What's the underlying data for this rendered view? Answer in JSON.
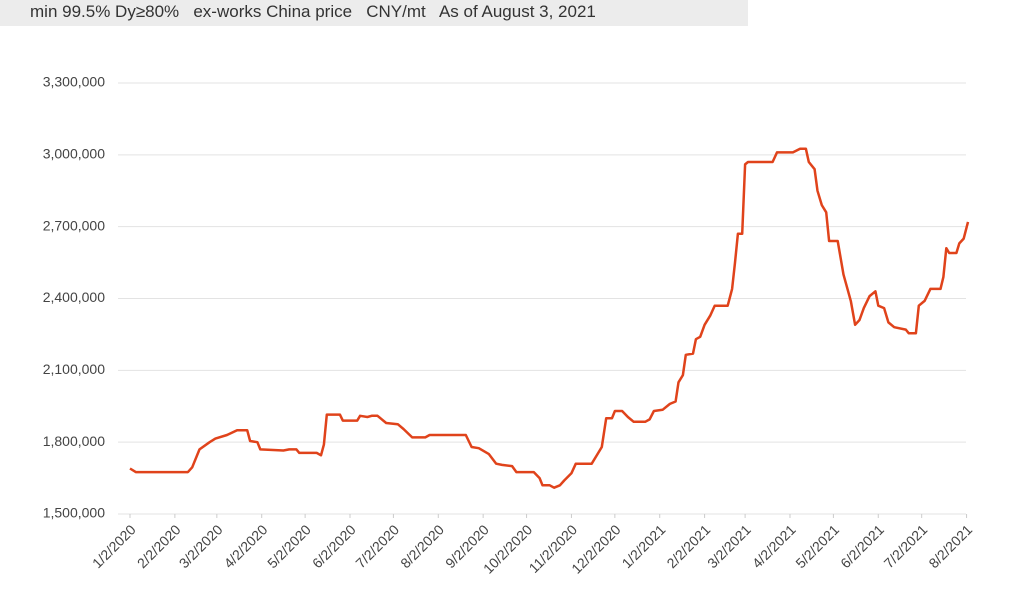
{
  "chart_data": {
    "type": "line",
    "title": "min 99.5% Dy≥80%   ex-works China price   CNY/mt   As of August 3, 2021",
    "color": "#e0431b",
    "x": [
      "1/2/2020",
      "1/6/2020",
      "2/11/2020",
      "2/14/2020",
      "2/19/2020",
      "2/26/2020",
      "3/1/2020",
      "3/9/2020",
      "3/16/2020",
      "3/23/2020",
      "3/25/2020",
      "3/30/2020",
      "4/1/2020",
      "4/17/2020",
      "4/21/2020",
      "4/26/2020",
      "4/28/2020",
      "5/10/2020",
      "5/13/2020",
      "5/15/2020",
      "5/17/2020",
      "5/26/2020",
      "5/28/2020",
      "6/7/2020",
      "6/9/2020",
      "6/14/2020",
      "6/17/2020",
      "6/21/2020",
      "6/27/2020",
      "7/5/2020",
      "7/9/2020",
      "7/15/2020",
      "7/24/2020",
      "7/27/2020",
      "8/21/2020",
      "8/25/2020",
      "8/30/2020",
      "9/6/2020",
      "9/11/2020",
      "9/15/2020",
      "9/22/2020",
      "9/25/2020",
      "10/7/2020",
      "10/11/2020",
      "10/13/2020",
      "10/18/2020",
      "10/21/2020",
      "10/25/2020",
      "10/28/2020",
      "11/2/2020",
      "11/5/2020",
      "11/16/2020",
      "11/20/2020",
      "11/23/2020",
      "11/26/2020",
      "11/30/2020",
      "12/2/2020",
      "12/7/2020",
      "12/11/2020",
      "12/15/2020",
      "12/23/2020",
      "12/26/2020",
      "12/29/2020",
      "1/4/2021",
      "1/9/2021",
      "1/13/2021",
      "1/15/2021",
      "1/18/2021",
      "1/20/2021",
      "1/25/2021",
      "1/27/2021",
      "1/30/2021",
      "2/2/2021",
      "2/6/2021",
      "2/9/2021",
      "2/18/2021",
      "2/21/2021",
      "2/23/2021",
      "2/25/2021",
      "2/28/2021",
      "3/2/2021",
      "3/4/2021",
      "3/21/2021",
      "3/24/2021",
      "4/4/2021",
      "4/9/2021",
      "4/13/2021",
      "4/15/2021",
      "4/19/2021",
      "4/21/2021",
      "4/24/2021",
      "4/27/2021",
      "4/29/2021",
      "5/5/2021",
      "5/9/2021",
      "5/14/2021",
      "5/17/2021",
      "5/20/2021",
      "5/23/2021",
      "5/27/2021",
      "5/31/2021",
      "6/2/2021",
      "6/6/2021",
      "6/9/2021",
      "6/13/2021",
      "6/21/2021",
      "6/23/2021",
      "6/28/2021",
      "6/30/2021",
      "7/4/2021",
      "7/8/2021",
      "7/15/2021",
      "7/17/2021",
      "7/19/2021",
      "7/21/2021",
      "7/26/2021",
      "7/28/2021",
      "7/31/2021",
      "8/3/2021"
    ],
    "values": [
      1690000,
      1675000,
      1675000,
      1695000,
      1770000,
      1800000,
      1815000,
      1830000,
      1850000,
      1850000,
      1805000,
      1800000,
      1770000,
      1765000,
      1770000,
      1770000,
      1755000,
      1755000,
      1745000,
      1790000,
      1915000,
      1915000,
      1890000,
      1890000,
      1910000,
      1905000,
      1910000,
      1910000,
      1880000,
      1875000,
      1855000,
      1820000,
      1820000,
      1830000,
      1830000,
      1780000,
      1775000,
      1750000,
      1710000,
      1705000,
      1700000,
      1675000,
      1675000,
      1650000,
      1620000,
      1620000,
      1610000,
      1620000,
      1640000,
      1670000,
      1710000,
      1710000,
      1750000,
      1780000,
      1900000,
      1900000,
      1930000,
      1930000,
      1905000,
      1885000,
      1885000,
      1895000,
      1930000,
      1935000,
      1960000,
      1970000,
      2050000,
      2080000,
      2165000,
      2170000,
      2230000,
      2240000,
      2290000,
      2330000,
      2370000,
      2370000,
      2440000,
      2550000,
      2670000,
      2670000,
      2960000,
      2970000,
      2970000,
      3010000,
      3010000,
      3025000,
      3025000,
      2970000,
      2940000,
      2850000,
      2790000,
      2760000,
      2640000,
      2640000,
      2500000,
      2390000,
      2290000,
      2310000,
      2360000,
      2410000,
      2430000,
      2370000,
      2360000,
      2300000,
      2280000,
      2270000,
      2255000,
      2255000,
      2370000,
      2390000,
      2440000,
      2440000,
      2490000,
      2610000,
      2590000,
      2590000,
      2630000,
      2650000,
      2720000
    ],
    "xlim": [
      "1/2/2020",
      "8/3/2021"
    ],
    "xticks": [
      "1/2/2020",
      "2/2/2020",
      "3/2/2020",
      "4/2/2020",
      "5/2/2020",
      "6/2/2020",
      "7/2/2020",
      "8/2/2020",
      "9/2/2020",
      "10/2/2020",
      "11/2/2020",
      "12/2/2020",
      "1/2/2021",
      "2/2/2021",
      "3/2/2021",
      "4/2/2021",
      "5/2/2021",
      "6/2/2021",
      "7/2/2021",
      "8/2/2021"
    ],
    "ylim": [
      1500000,
      3300000
    ],
    "yticks": [
      {
        "value": 1500000,
        "label": "1,500,000"
      },
      {
        "value": 1800000,
        "label": "1,800,000"
      },
      {
        "value": 2100000,
        "label": "2,100,000"
      },
      {
        "value": 2400000,
        "label": "2,400,000"
      },
      {
        "value": 2700000,
        "label": "2,700,000"
      },
      {
        "value": 3000000,
        "label": "3,000,000"
      },
      {
        "value": 3300000,
        "label": "3,300,000"
      }
    ],
    "grid": true
  }
}
